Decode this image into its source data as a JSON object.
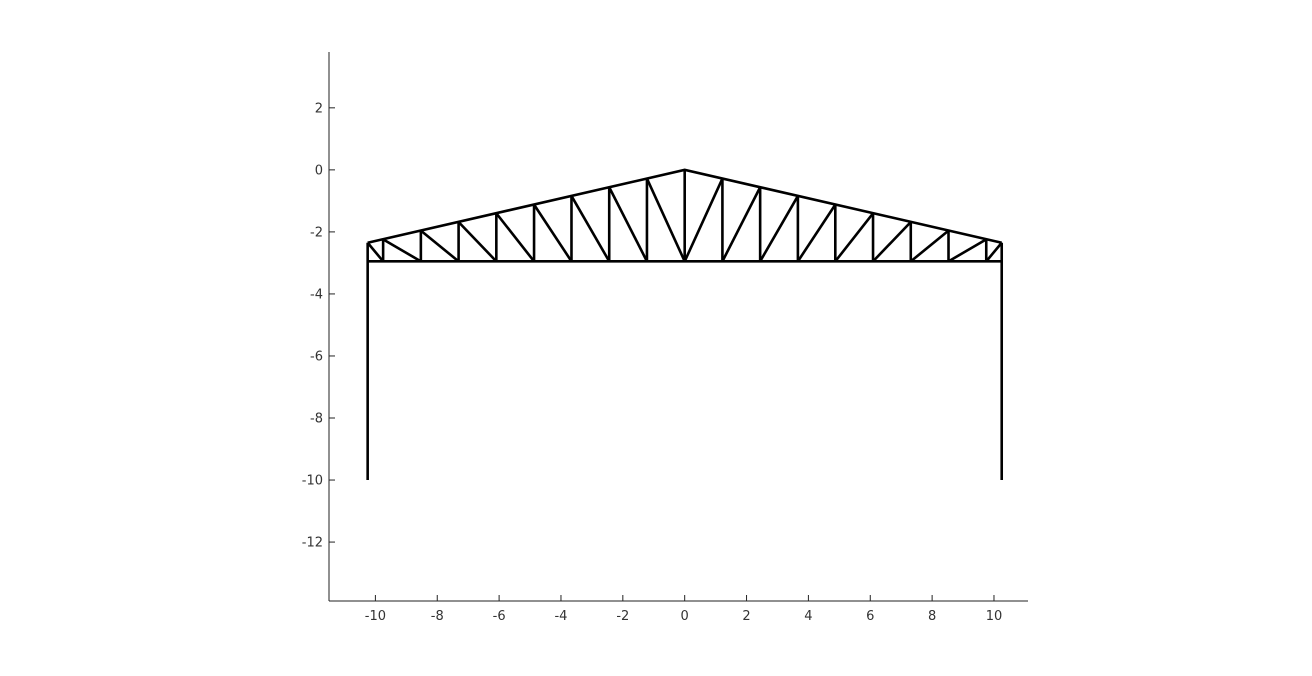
{
  "chart_data": {
    "type": "line",
    "title": "",
    "xlabel": "",
    "ylabel": "",
    "xlim": [
      -11.5,
      11.1
    ],
    "ylim": [
      -13.9,
      3.8
    ],
    "grid": false,
    "legend": "none",
    "line_color": "#000000",
    "x_ticks": [
      -10,
      -8,
      -6,
      -4,
      -2,
      0,
      2,
      4,
      6,
      8,
      10
    ],
    "y_ticks": [
      2,
      0,
      -2,
      -4,
      -6,
      -8,
      -10,
      -12
    ],
    "x_tick_labels": [
      "-10",
      "-8",
      "-6",
      "-4",
      "-2",
      "0",
      "2",
      "4",
      "6",
      "8",
      "10"
    ],
    "y_tick_labels": [
      "2",
      "0",
      "-2",
      "-4",
      "-6",
      "-8",
      "-10",
      "-12"
    ],
    "series": [
      {
        "values": [
          [
            -10.25,
            -10
          ],
          [
            -10.25,
            -2.35
          ]
        ]
      },
      {
        "values": [
          [
            10.25,
            -10
          ],
          [
            10.25,
            -2.35
          ]
        ]
      },
      {
        "values": [
          [
            -10.25,
            -2.35
          ],
          [
            0,
            0
          ],
          [
            10.25,
            -2.35
          ]
        ]
      },
      {
        "values": [
          [
            -10.25,
            -2.95
          ],
          [
            10.25,
            -2.95
          ]
        ]
      },
      {
        "values": [
          [
            -9.75,
            -2.24
          ],
          [
            -9.75,
            -2.95
          ]
        ]
      },
      {
        "values": [
          [
            -8.53,
            -1.96
          ],
          [
            -8.53,
            -2.95
          ]
        ]
      },
      {
        "values": [
          [
            -7.31,
            -1.68
          ],
          [
            -7.31,
            -2.95
          ]
        ]
      },
      {
        "values": [
          [
            -6.09,
            -1.4
          ],
          [
            -6.09,
            -2.95
          ]
        ]
      },
      {
        "values": [
          [
            -4.87,
            -1.12
          ],
          [
            -4.87,
            -2.95
          ]
        ]
      },
      {
        "values": [
          [
            -3.66,
            -0.84
          ],
          [
            -3.66,
            -2.95
          ]
        ]
      },
      {
        "values": [
          [
            -2.44,
            -0.56
          ],
          [
            -2.44,
            -2.95
          ]
        ]
      },
      {
        "values": [
          [
            -1.22,
            -0.28
          ],
          [
            -1.22,
            -2.95
          ]
        ]
      },
      {
        "values": [
          [
            0,
            0
          ],
          [
            0,
            -2.95
          ]
        ]
      },
      {
        "values": [
          [
            1.22,
            -0.28
          ],
          [
            1.22,
            -2.95
          ]
        ]
      },
      {
        "values": [
          [
            2.44,
            -0.56
          ],
          [
            2.44,
            -2.95
          ]
        ]
      },
      {
        "values": [
          [
            3.66,
            -0.84
          ],
          [
            3.66,
            -2.95
          ]
        ]
      },
      {
        "values": [
          [
            4.87,
            -1.12
          ],
          [
            4.87,
            -2.95
          ]
        ]
      },
      {
        "values": [
          [
            6.09,
            -1.4
          ],
          [
            6.09,
            -2.95
          ]
        ]
      },
      {
        "values": [
          [
            7.31,
            -1.68
          ],
          [
            7.31,
            -2.95
          ]
        ]
      },
      {
        "values": [
          [
            8.53,
            -1.96
          ],
          [
            8.53,
            -2.95
          ]
        ]
      },
      {
        "values": [
          [
            9.75,
            -2.24
          ],
          [
            9.75,
            -2.95
          ]
        ]
      },
      {
        "values": [
          [
            -10.25,
            -2.35
          ],
          [
            -9.75,
            -2.95
          ]
        ]
      },
      {
        "values": [
          [
            -9.75,
            -2.24
          ],
          [
            -8.53,
            -2.95
          ]
        ]
      },
      {
        "values": [
          [
            -8.53,
            -1.96
          ],
          [
            -7.31,
            -2.95
          ]
        ]
      },
      {
        "values": [
          [
            -7.31,
            -1.68
          ],
          [
            -6.09,
            -2.95
          ]
        ]
      },
      {
        "values": [
          [
            -6.09,
            -1.4
          ],
          [
            -4.87,
            -2.95
          ]
        ]
      },
      {
        "values": [
          [
            -4.87,
            -1.12
          ],
          [
            -3.66,
            -2.95
          ]
        ]
      },
      {
        "values": [
          [
            -3.66,
            -0.84
          ],
          [
            -2.44,
            -2.95
          ]
        ]
      },
      {
        "values": [
          [
            -2.44,
            -0.56
          ],
          [
            -1.22,
            -2.95
          ]
        ]
      },
      {
        "values": [
          [
            -1.22,
            -0.28
          ],
          [
            0,
            -2.95
          ]
        ]
      },
      {
        "values": [
          [
            1.22,
            -0.28
          ],
          [
            0,
            -2.95
          ]
        ]
      },
      {
        "values": [
          [
            2.44,
            -0.56
          ],
          [
            1.22,
            -2.95
          ]
        ]
      },
      {
        "values": [
          [
            3.66,
            -0.84
          ],
          [
            2.44,
            -2.95
          ]
        ]
      },
      {
        "values": [
          [
            4.87,
            -1.12
          ],
          [
            3.66,
            -2.95
          ]
        ]
      },
      {
        "values": [
          [
            6.09,
            -1.4
          ],
          [
            4.87,
            -2.95
          ]
        ]
      },
      {
        "values": [
          [
            7.31,
            -1.68
          ],
          [
            6.09,
            -2.95
          ]
        ]
      },
      {
        "values": [
          [
            8.53,
            -1.96
          ],
          [
            7.31,
            -2.95
          ]
        ]
      },
      {
        "values": [
          [
            9.75,
            -2.24
          ],
          [
            8.53,
            -2.95
          ]
        ]
      },
      {
        "values": [
          [
            10.25,
            -2.35
          ],
          [
            9.75,
            -2.95
          ]
        ]
      }
    ]
  }
}
